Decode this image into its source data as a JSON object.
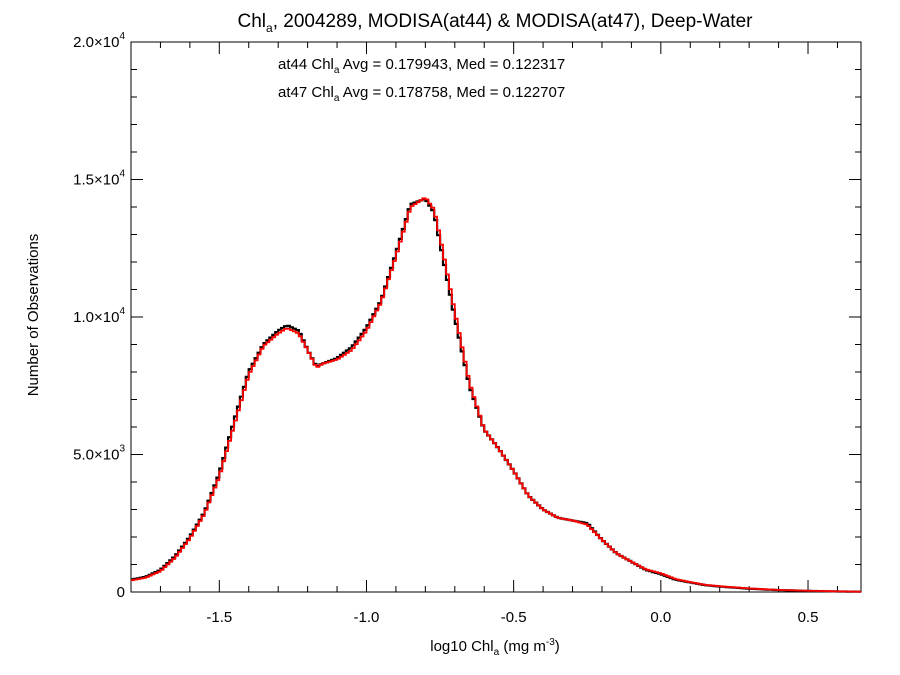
{
  "chart_data": {
    "type": "line",
    "title": {
      "main": "Chl",
      "sub": "a",
      "rest": ", 2004289, MODISA(at44) & MODISA(at47), Deep-Water"
    },
    "xlabel": {
      "main": "log10 Chl",
      "sub": "a",
      "rest": " (mg m",
      "sup": "-3",
      "end": ")"
    },
    "ylabel": "Number of Observations",
    "xlim": [
      -1.8,
      0.68
    ],
    "ylim": [
      0,
      20000
    ],
    "xticks": [
      {
        "value": -1.5,
        "label": "-1.5"
      },
      {
        "value": -1.0,
        "label": "-1.0"
      },
      {
        "value": -0.5,
        "label": "-0.5"
      },
      {
        "value": 0.0,
        "label": "0.0"
      },
      {
        "value": 0.5,
        "label": "0.5"
      }
    ],
    "yticks": [
      {
        "value": 0,
        "mant": "0",
        "exp": ""
      },
      {
        "value": 5000,
        "mant": "5.0×10",
        "exp": "3"
      },
      {
        "value": 10000,
        "mant": "1.0×10",
        "exp": "4"
      },
      {
        "value": 15000,
        "mant": "1.5×10",
        "exp": "4"
      },
      {
        "value": 20000,
        "mant": "2.0×10",
        "exp": "4"
      }
    ],
    "annotations": [
      {
        "color": "#000000",
        "pre": "at44 Chl",
        "sub": "a",
        "post": " Avg = 0.179943, Med = 0.122317"
      },
      {
        "color": "#ff0000",
        "pre": "at47 Chl",
        "sub": "a",
        "post": " Avg = 0.178758, Med = 0.122707"
      }
    ],
    "series": [
      {
        "color": "#000000",
        "points": [
          [
            -1.8,
            450
          ],
          [
            -1.75,
            550
          ],
          [
            -1.7,
            800
          ],
          [
            -1.65,
            1300
          ],
          [
            -1.6,
            2000
          ],
          [
            -1.55,
            2900
          ],
          [
            -1.5,
            4300
          ],
          [
            -1.45,
            6200
          ],
          [
            -1.4,
            8000
          ],
          [
            -1.35,
            9000
          ],
          [
            -1.3,
            9500
          ],
          [
            -1.27,
            9700
          ],
          [
            -1.23,
            9500
          ],
          [
            -1.2,
            8800
          ],
          [
            -1.17,
            8200
          ],
          [
            -1.15,
            8300
          ],
          [
            -1.1,
            8500
          ],
          [
            -1.05,
            8900
          ],
          [
            -1.0,
            9600
          ],
          [
            -0.95,
            10600
          ],
          [
            -0.9,
            12300
          ],
          [
            -0.85,
            14100
          ],
          [
            -0.8,
            14300
          ],
          [
            -0.77,
            13800
          ],
          [
            -0.75,
            12700
          ],
          [
            -0.7,
            10000
          ],
          [
            -0.65,
            7500
          ],
          [
            -0.6,
            5900
          ],
          [
            -0.55,
            5200
          ],
          [
            -0.5,
            4400
          ],
          [
            -0.45,
            3500
          ],
          [
            -0.4,
            3000
          ],
          [
            -0.35,
            2700
          ],
          [
            -0.3,
            2600
          ],
          [
            -0.25,
            2500
          ],
          [
            -0.2,
            1900
          ],
          [
            -0.15,
            1400
          ],
          [
            -0.1,
            1100
          ],
          [
            -0.05,
            800
          ],
          [
            0.0,
            650
          ],
          [
            0.05,
            450
          ],
          [
            0.1,
            350
          ],
          [
            0.15,
            250
          ],
          [
            0.2,
            200
          ],
          [
            0.3,
            120
          ],
          [
            0.4,
            70
          ],
          [
            0.5,
            40
          ],
          [
            0.6,
            20
          ],
          [
            0.68,
            10
          ]
        ]
      },
      {
        "color": "#ff0000",
        "points": [
          [
            -1.8,
            420
          ],
          [
            -1.75,
            520
          ],
          [
            -1.7,
            760
          ],
          [
            -1.65,
            1250
          ],
          [
            -1.6,
            1950
          ],
          [
            -1.55,
            2850
          ],
          [
            -1.5,
            4200
          ],
          [
            -1.45,
            6050
          ],
          [
            -1.4,
            7900
          ],
          [
            -1.35,
            8950
          ],
          [
            -1.3,
            9400
          ],
          [
            -1.27,
            9600
          ],
          [
            -1.23,
            9400
          ],
          [
            -1.2,
            8800
          ],
          [
            -1.17,
            8150
          ],
          [
            -1.15,
            8300
          ],
          [
            -1.1,
            8450
          ],
          [
            -1.05,
            8800
          ],
          [
            -1.0,
            9500
          ],
          [
            -0.95,
            10550
          ],
          [
            -0.9,
            12200
          ],
          [
            -0.85,
            14000
          ],
          [
            -0.8,
            14350
          ],
          [
            -0.77,
            13900
          ],
          [
            -0.75,
            12900
          ],
          [
            -0.7,
            10200
          ],
          [
            -0.65,
            7600
          ],
          [
            -0.6,
            5900
          ],
          [
            -0.55,
            5200
          ],
          [
            -0.5,
            4400
          ],
          [
            -0.45,
            3500
          ],
          [
            -0.4,
            3000
          ],
          [
            -0.35,
            2700
          ],
          [
            -0.3,
            2600
          ],
          [
            -0.25,
            2450
          ],
          [
            -0.2,
            1900
          ],
          [
            -0.15,
            1400
          ],
          [
            -0.1,
            1100
          ],
          [
            -0.05,
            820
          ],
          [
            0.0,
            680
          ],
          [
            0.05,
            470
          ],
          [
            0.1,
            360
          ],
          [
            0.15,
            260
          ],
          [
            0.2,
            210
          ],
          [
            0.3,
            130
          ],
          [
            0.4,
            75
          ],
          [
            0.5,
            45
          ],
          [
            0.6,
            22
          ],
          [
            0.68,
            12
          ]
        ]
      }
    ]
  }
}
